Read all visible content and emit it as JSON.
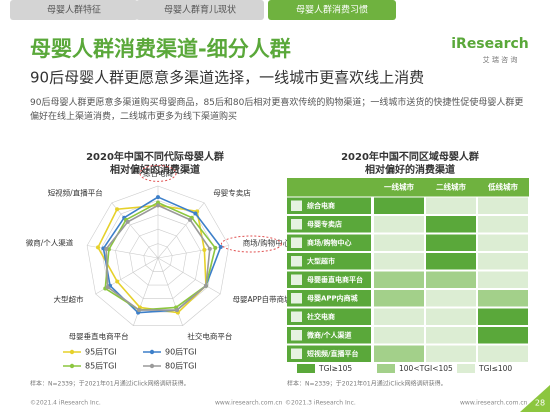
{
  "tabs": [
    "母婴人群特征",
    "母婴人群育儿现状",
    "母婴人群消费习惯"
  ],
  "logo": {
    "name": "iResearch",
    "sub": "艾 瑞 咨 询"
  },
  "title": "母婴人群消费渠道-细分人群",
  "subtitle": "90后母婴人群更愿意多渠道选择，一线城市更喜欢线上消费",
  "paragraph": "90后母婴人群更愿意多渠道购买母婴商品，85后和80后相对更喜欢传统的购物渠道；一线城市送货的快捷性促使母婴人群更偏好在线上渠道消费，二线城市更多为线下渠道购买",
  "chart_data": {
    "type": "radar",
    "title": "2020年中国不同代际母婴人群相对偏好的消费渠道",
    "categories": [
      "综合电商",
      "母婴专卖店",
      "商场/购物中心",
      "母婴APP自带商城",
      "社交电商平台",
      "母婴垂直电商平台",
      "大型超市",
      "微商/个人渠道",
      "短视频/直播平台"
    ],
    "rlim": [
      0,
      130
    ],
    "series": [
      {
        "name": "95后TGI",
        "color": "#e6d12a",
        "values": [
          95,
          110,
          85,
          100,
          105,
          95,
          85,
          110,
          115
        ]
      },
      {
        "name": "90后TGI",
        "color": "#3d7fc9",
        "values": [
          110,
          105,
          115,
          100,
          100,
          105,
          100,
          100,
          95
        ]
      },
      {
        "name": "85后TGI",
        "color": "#8cc63f",
        "values": [
          100,
          95,
          105,
          100,
          95,
          100,
          110,
          90,
          90
        ]
      },
      {
        "name": "80后TGI",
        "color": "#9a9a9a",
        "values": [
          95,
          90,
          95,
          100,
          100,
          100,
          105,
          95,
          85
        ]
      }
    ]
  },
  "table": {
    "title": "2020年中国不同区域母婴人群相对偏好的消费渠道",
    "columns": [
      "一线城市",
      "二线城市",
      "低线城市"
    ],
    "rows": [
      "综合电商",
      "母婴专卖店",
      "商场/购物中心",
      "大型超市",
      "母婴垂直电商平台",
      "母婴APP内商城",
      "社交电商",
      "微商/个人渠道",
      "短视频/直播平台"
    ],
    "levels": [
      [
        0,
        2,
        2
      ],
      [
        2,
        0,
        2
      ],
      [
        2,
        0,
        2
      ],
      [
        2,
        0,
        2
      ],
      [
        1,
        1,
        2
      ],
      [
        1,
        2,
        1
      ],
      [
        2,
        2,
        0
      ],
      [
        2,
        2,
        0
      ],
      [
        1,
        2,
        2
      ]
    ],
    "legend": [
      {
        "label": "TGI≥105",
        "color": "#5aa83a"
      },
      {
        "label": "100<TGI<105",
        "color": "#a3d08a"
      },
      {
        "label": "TGI≤100",
        "color": "#dcedd3"
      }
    ]
  },
  "sources": [
    "样本：N=2339；于2021年01月通过iClick网络调研获得。",
    "样本：N=2339；于2021年01月通过iClick网络调研获得。"
  ],
  "footer": [
    "©2021.4 iResearch Inc.",
    "www.iresearch.com.cn",
    "©2021.3 iResearch Inc.",
    "www.iresearch.com.cn"
  ],
  "page": "28"
}
